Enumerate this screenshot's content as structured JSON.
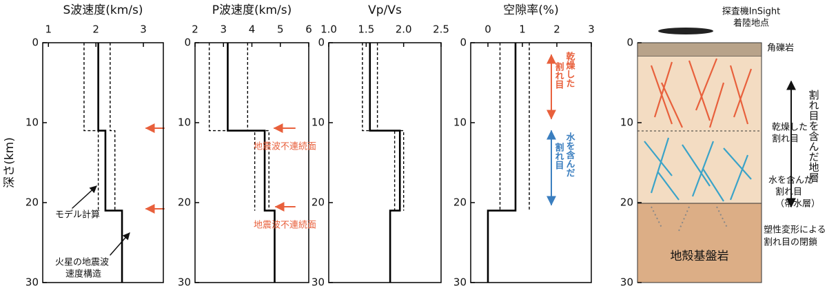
{
  "y_label": "深さ(km)",
  "chart_data": [
    {
      "type": "line",
      "title": "S波速度(km/s)",
      "xlim": [
        0.88,
        3.42
      ],
      "xticks": [
        1,
        2,
        3
      ],
      "ylim": [
        0,
        30
      ],
      "yticks": [
        0,
        10,
        20,
        30
      ],
      "series": [
        {
          "style": "solid",
          "depth": [
            0,
            11,
            11,
            21,
            21,
            30
          ],
          "values": [
            2.05,
            2.05,
            2.2,
            2.2,
            2.55,
            2.55
          ]
        },
        {
          "style": "dashed",
          "depth": [
            0,
            11,
            11,
            21
          ],
          "values": [
            1.75,
            1.75,
            2.05,
            2.05
          ]
        },
        {
          "style": "dashed",
          "depth": [
            0,
            11,
            11,
            21
          ],
          "values": [
            2.3,
            2.3,
            2.4,
            2.4
          ]
        }
      ],
      "annotations": [
        "モデル計算",
        "火星の地震波",
        "速度構造"
      ]
    },
    {
      "type": "line",
      "title": "P波速度(km/s)",
      "xlim": [
        2,
        6
      ],
      "xticks": [
        2,
        3,
        4,
        5,
        6
      ],
      "ylim": [
        0,
        30
      ],
      "yticks": [
        0,
        10,
        20,
        30
      ],
      "series": [
        {
          "style": "solid",
          "depth": [
            0,
            11,
            11,
            21,
            21,
            30
          ],
          "values": [
            3.15,
            3.15,
            4.45,
            4.45,
            4.8,
            4.8
          ]
        },
        {
          "style": "dashed",
          "depth": [
            0,
            11,
            11,
            21
          ],
          "values": [
            2.5,
            2.5,
            4.1,
            4.1
          ]
        },
        {
          "style": "dashed",
          "depth": [
            0,
            11,
            11,
            21
          ],
          "values": [
            3.85,
            3.85,
            4.6,
            4.6
          ]
        }
      ],
      "annotations": [
        "地震波不連続面",
        "地震波不連続面"
      ]
    },
    {
      "type": "line",
      "title": "Vp/Vs",
      "xlim": [
        1.0,
        2.5
      ],
      "xticks": [
        {
          "value": 1.0,
          "label": "1.0"
        },
        1.5,
        {
          "value": 2.0,
          "label": "2.0"
        },
        2.5
      ],
      "ylim": [
        0,
        30
      ],
      "yticks": [
        0,
        10,
        20,
        30
      ],
      "series": [
        {
          "style": "solid",
          "depth": [
            0,
            11,
            11,
            21,
            21,
            30
          ],
          "values": [
            1.55,
            1.55,
            1.95,
            1.95,
            1.82,
            1.82
          ]
        },
        {
          "style": "dashed",
          "depth": [
            0,
            11,
            11,
            21
          ],
          "values": [
            1.45,
            1.45,
            1.88,
            1.88
          ]
        },
        {
          "style": "dashed",
          "depth": [
            0,
            11,
            11,
            21
          ],
          "values": [
            1.65,
            1.65,
            2.0,
            2.0
          ]
        }
      ],
      "annotations": []
    },
    {
      "type": "line",
      "title": "空隙率(%)",
      "xlim": [
        -0.5,
        3
      ],
      "xticks": [
        0,
        1,
        2,
        3
      ],
      "ylim": [
        0,
        30
      ],
      "yticks": [
        0,
        10,
        20,
        30
      ],
      "series": [
        {
          "style": "solid",
          "depth": [
            0,
            21,
            21,
            30
          ],
          "values": [
            0.8,
            0.8,
            0,
            0
          ]
        },
        {
          "style": "dashed",
          "depth": [
            0,
            21
          ],
          "values": [
            0.35,
            0.35
          ]
        },
        {
          "style": "dashed",
          "depth": [
            0,
            21
          ],
          "values": [
            1.2,
            1.2
          ]
        }
      ],
      "annotations": [
        "乾燥した",
        "割れ目",
        "水を含んだ",
        "割れ目"
      ]
    }
  ],
  "diagram": {
    "title": [
      "探査機InSight",
      "着陸地点"
    ],
    "yticks": [
      0,
      10,
      20,
      30
    ],
    "labels": [
      "角礫岩",
      "乾燥した",
      "割れ目",
      "水を含んだ",
      "割れ目",
      "（帯水層）",
      "塑性変形による",
      "割れ目の閉鎖",
      "地殻基盤岩",
      "割れ目を含んだ地層"
    ]
  }
}
